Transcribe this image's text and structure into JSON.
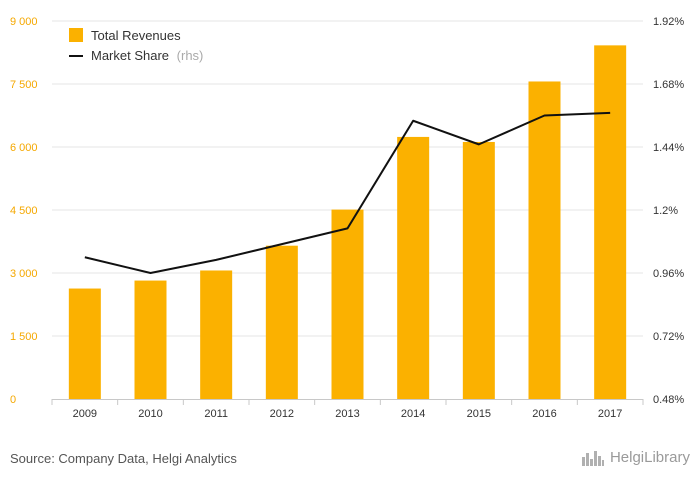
{
  "colors": {
    "bar": "#FBB100",
    "line": "#111111",
    "left_axis_text": "#F5A800",
    "right_axis_text": "#333333",
    "grid": "#E6E6E6",
    "muted": "#AAAAAA"
  },
  "legend": {
    "revenues_label": "Total Revenues",
    "market_share_label": "Market Share",
    "market_share_suffix": "(rhs)"
  },
  "footer": {
    "source": "Source: Company Data, Helgi Analytics",
    "brand": "HelgiLibrary"
  },
  "chart_data": {
    "type": "bar",
    "categories": [
      "2009",
      "2010",
      "2011",
      "2012",
      "2013",
      "2014",
      "2015",
      "2016",
      "2017"
    ],
    "series": [
      {
        "name": "Total Revenues",
        "type": "bar",
        "axis": "left",
        "values": [
          2630,
          2820,
          3060,
          3650,
          4510,
          6240,
          6120,
          7560,
          8420
        ]
      },
      {
        "name": "Market Share",
        "type": "line",
        "axis": "right",
        "unit": "%",
        "values": [
          1.02,
          0.96,
          1.01,
          1.07,
          1.13,
          1.54,
          1.45,
          1.56,
          1.57
        ]
      }
    ],
    "y_left": {
      "ylim": [
        0,
        9000
      ],
      "ticks": [
        0,
        1500,
        3000,
        4500,
        6000,
        7500,
        9000
      ],
      "tick_labels": [
        "0",
        "1 500",
        "3 000",
        "4 500",
        "6 000",
        "7 500",
        "9 000"
      ]
    },
    "y_right": {
      "ylim": [
        0.48,
        1.92
      ],
      "ticks": [
        0.48,
        0.72,
        0.96,
        1.2,
        1.44,
        1.68,
        1.92
      ],
      "tick_labels": [
        "0.48%",
        "0.72%",
        "0.96%",
        "1.2%",
        "1.44%",
        "1.68%",
        "1.92%"
      ]
    },
    "grid": true,
    "legend_position": "top-left"
  }
}
